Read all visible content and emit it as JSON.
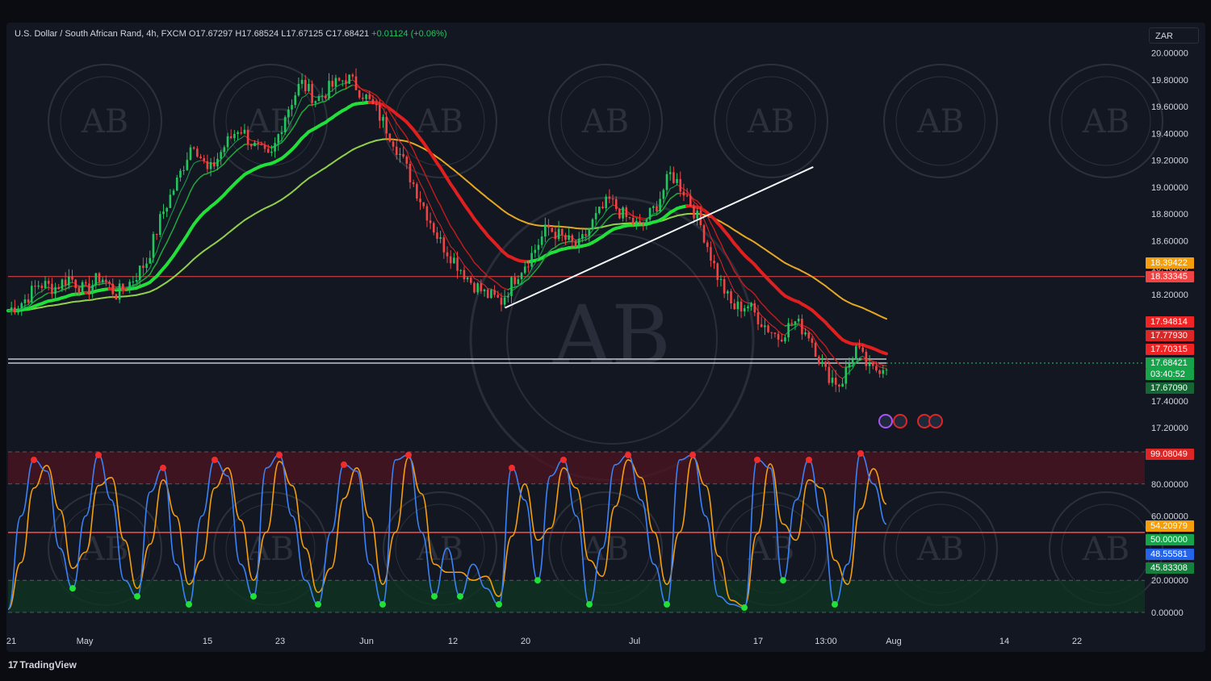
{
  "symbol": {
    "name": "U.S. Dollar / South African Rand, 4h, FXCM",
    "open": "O17.67297",
    "high": "H17.68524",
    "low": "L17.67125",
    "close": "C17.68421",
    "change": "+0.01124 (+0.06%)"
  },
  "currency_button": "ZAR",
  "brand": "TradingView",
  "watermark": {
    "monogram": "AB"
  },
  "price_tags": [
    {
      "label": "18.39422",
      "color": "#f59e0b",
      "value": 18.39422
    },
    {
      "label": "18.33345",
      "color": "#ef4444",
      "value": 18.33345
    },
    {
      "label": "17.94814",
      "color": "#ef2323",
      "value": 17.94814
    },
    {
      "label": "17.77930",
      "color": "#dc2626",
      "value": 17.7793
    },
    {
      "label": "17.70315",
      "color": "#ef2323",
      "value": 17.70315
    },
    {
      "label": "17.68421",
      "color": "#16a34a",
      "value": 17.68421
    },
    {
      "label": "03:40:52",
      "color": "#16a34a",
      "value": 17.64
    },
    {
      "label": "17.67090",
      "color": "#166534",
      "value": 17.6709
    }
  ],
  "osc_tags": [
    {
      "label": "99.08049",
      "color": "#dc2626",
      "value": 99.08
    },
    {
      "label": "54.20979",
      "color": "#f59e0b",
      "value": 54.21
    },
    {
      "label": "50.00000",
      "color": "#16a34a",
      "value": 50.0
    },
    {
      "label": "48.55581",
      "color": "#2563eb",
      "value": 48.56
    },
    {
      "label": "45.83308",
      "color": "#15803d",
      "value": 45.83
    }
  ],
  "chart_data": [
    {
      "type": "candlestick",
      "title": "U.S. Dollar / South African Rand, 4h, FXCM",
      "x_ticks": [
        "21",
        "May",
        "15",
        "23",
        "Jun",
        "12",
        "20",
        "Jul",
        "17",
        "13:00",
        "Aug",
        "14",
        "22"
      ],
      "y_ticks": [
        "20.00000",
        "19.80000",
        "19.60000",
        "19.40000",
        "19.20000",
        "19.00000",
        "18.80000",
        "18.60000",
        "18.40000",
        "18.20000",
        "17.40000",
        "17.20000"
      ],
      "ylim": [
        17.05,
        20.05
      ],
      "close_path": [
        [
          0,
          18.08
        ],
        [
          2,
          18.15
        ],
        [
          4,
          18.28
        ],
        [
          6,
          18.25
        ],
        [
          8,
          18.33
        ],
        [
          10,
          18.22
        ],
        [
          12,
          18.34
        ],
        [
          14,
          18.2
        ],
        [
          16,
          18.3
        ],
        [
          18,
          18.45
        ],
        [
          20,
          18.8
        ],
        [
          22,
          19.05
        ],
        [
          24,
          19.35
        ],
        [
          26,
          19.1
        ],
        [
          28,
          19.3
        ],
        [
          30,
          19.45
        ],
        [
          32,
          19.3
        ],
        [
          34,
          19.2
        ],
        [
          36,
          19.55
        ],
        [
          38,
          19.78
        ],
        [
          40,
          19.65
        ],
        [
          42,
          19.75
        ],
        [
          44,
          19.82
        ],
        [
          46,
          19.7
        ],
        [
          48,
          19.55
        ],
        [
          50,
          19.35
        ],
        [
          52,
          19.1
        ],
        [
          54,
          18.85
        ],
        [
          56,
          18.6
        ],
        [
          58,
          18.45
        ],
        [
          60,
          18.3
        ],
        [
          62,
          18.2
        ],
        [
          64,
          18.15
        ],
        [
          66,
          18.35
        ],
        [
          68,
          18.5
        ],
        [
          70,
          18.7
        ],
        [
          72,
          18.62
        ],
        [
          74,
          18.55
        ],
        [
          76,
          18.75
        ],
        [
          78,
          18.9
        ],
        [
          80,
          18.78
        ],
        [
          82,
          18.7
        ],
        [
          84,
          18.85
        ],
        [
          86,
          19.1
        ],
        [
          88,
          18.95
        ],
        [
          90,
          18.7
        ],
        [
          92,
          18.35
        ],
        [
          94,
          18.1
        ],
        [
          96,
          18.12
        ],
        [
          98,
          17.98
        ],
        [
          100,
          17.88
        ],
        [
          102,
          18.0
        ],
        [
          104,
          17.9
        ],
        [
          106,
          17.62
        ],
        [
          108,
          17.52
        ],
        [
          110,
          17.8
        ],
        [
          112,
          17.62
        ],
        [
          114,
          17.68
        ]
      ],
      "moving_averages": [
        {
          "color": "#22c55e",
          "name": "fast"
        },
        {
          "color": "#ef4444",
          "name": "fast"
        },
        {
          "color": "#f59e0b",
          "name": "slow"
        }
      ],
      "horizontal_lines": [
        18.33345,
        17.72,
        17.695
      ],
      "trendline": [
        [
          17.0,
          18.1
        ],
        [
          19.3,
          19.15
        ]
      ]
    },
    {
      "type": "line",
      "indicator": "stochastic",
      "y_ticks": [
        "99.08049",
        "80.00000",
        "60.00000",
        "50.00000",
        "20.00000",
        "0.00000"
      ],
      "ylim": [
        0,
        100
      ],
      "levels": [
        80,
        50,
        20
      ],
      "k": [
        2,
        60,
        95,
        88,
        40,
        15,
        60,
        98,
        70,
        20,
        10,
        75,
        90,
        30,
        5,
        60,
        95,
        85,
        30,
        10,
        90,
        98,
        60,
        20,
        5,
        50,
        92,
        88,
        30,
        5,
        95,
        98,
        50,
        10,
        40,
        10,
        30,
        15,
        5,
        90,
        70,
        20,
        85,
        95,
        60,
        5,
        40,
        92,
        98,
        70,
        30,
        5,
        95,
        98,
        60,
        10,
        5,
        3,
        95,
        90,
        20,
        70,
        95,
        60,
        5,
        30,
        99,
        80,
        55
      ]
    }
  ]
}
